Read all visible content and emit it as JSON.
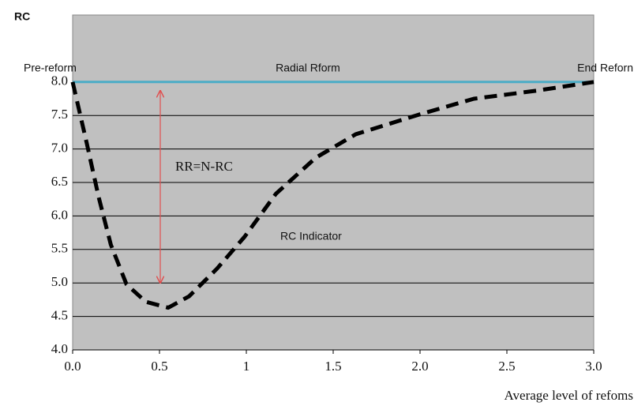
{
  "chart_data": {
    "type": "line",
    "y_label": "RC",
    "x_label": "Average level of refoms",
    "annotations": [
      "Pre-reform",
      "Radial Rform",
      "End Reforn",
      "RR=N-RC",
      "RC Indicator"
    ],
    "xlim": [
      0,
      3
    ],
    "ylim": [
      4,
      9
    ],
    "xticks": [
      {
        "value": 0,
        "label": "0.0"
      },
      {
        "value": 0.5,
        "label": "0.5"
      },
      1,
      {
        "value": 1.5,
        "label": "1.5"
      },
      {
        "value": 2,
        "label": "2.0"
      },
      {
        "value": 2.5,
        "label": "2.5"
      },
      {
        "value": 3,
        "label": "3.0"
      }
    ],
    "yticks": [
      {
        "value": 4,
        "label": "4.0"
      },
      4.5,
      {
        "value": 5,
        "label": "5.0"
      },
      5.5,
      {
        "value": 6,
        "label": "6.0"
      },
      6.5,
      {
        "value": 7,
        "label": "7.0"
      },
      7.5,
      {
        "value": 8,
        "label": "8.0"
      }
    ],
    "grid": true,
    "background": "#c0c0c0",
    "series": [
      {
        "color": "#4bacc6",
        "dashed": false,
        "x": [
          0,
          3
        ],
        "values": [
          8,
          8
        ]
      },
      {
        "color": "#000000",
        "dashed": true,
        "x": [
          0,
          0.08,
          0.15,
          0.22,
          0.31,
          0.42,
          0.55,
          0.67,
          0.83,
          0.99,
          1.17,
          1.4,
          1.63,
          1.99,
          2.31,
          2.67,
          3
        ],
        "values": [
          8,
          7.1,
          6.28,
          5.57,
          4.98,
          4.72,
          4.63,
          4.8,
          5.21,
          5.69,
          6.33,
          6.87,
          7.22,
          7.51,
          7.75,
          7.87,
          8
        ]
      }
    ]
  }
}
